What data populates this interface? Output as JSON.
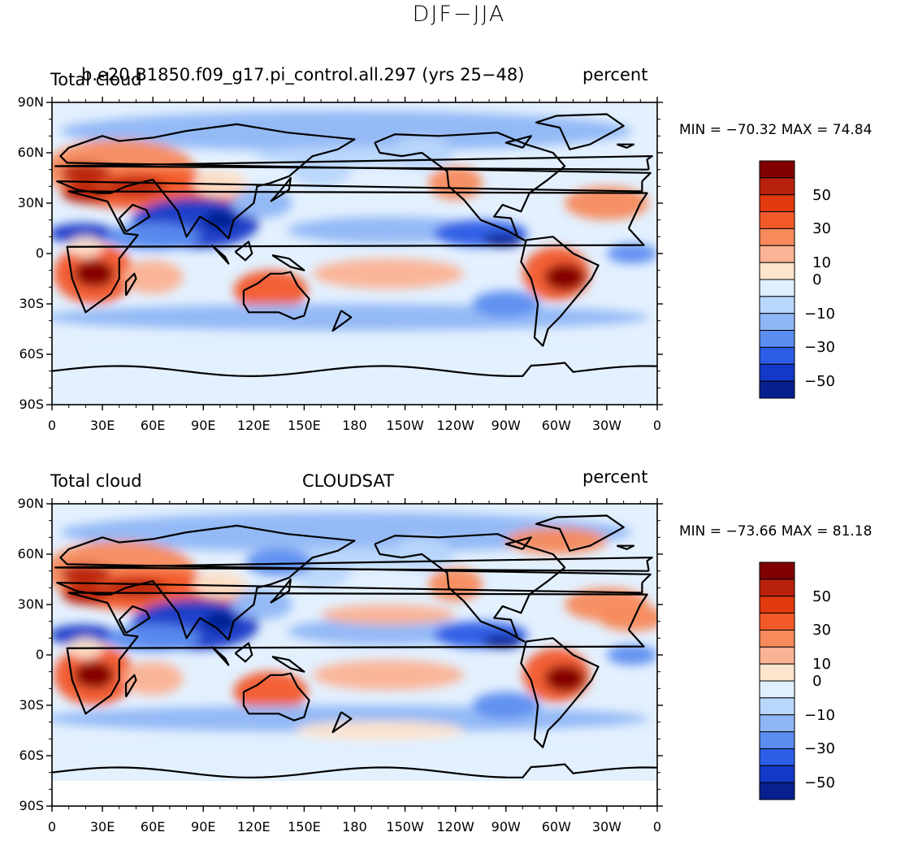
{
  "title": "DJF−JJA",
  "lat_labels": [
    "90N",
    "60N",
    "30N",
    "0",
    "30S",
    "60S",
    "90S"
  ],
  "lon_labels": [
    "0",
    "30E",
    "60E",
    "90E",
    "120E",
    "150E",
    "180",
    "150W",
    "120W",
    "90W",
    "60W",
    "30W",
    "0"
  ],
  "colorbar_colors": [
    "#800000",
    "#b8220c",
    "#e03a0e",
    "#f35a2a",
    "#f88a5c",
    "#fcb294",
    "#fde4cc",
    "#e0f0ff",
    "#b9d6fb",
    "#8fb6f6",
    "#5c8df0",
    "#2c5de6",
    "#1339c8",
    "#06208f"
  ],
  "colorbar_labels": [
    "50",
    "30",
    "10",
    "0",
    "−10",
    "−30",
    "−50"
  ],
  "land_color": "#000000",
  "panels": [
    {
      "left_title": "Total cloud",
      "center_title": "b.e20.B1850.f09_g17.pi_control.all.297 (yrs 25−48)",
      "right_title": "percent",
      "stats": "MIN = −70.32 MAX =  74.84",
      "min": -70.32,
      "max": 74.84
    },
    {
      "left_title": "Total cloud",
      "center_title": "CLOUDSAT",
      "right_title": "percent",
      "stats": "MIN = −73.66 MAX =  81.18",
      "min": -73.66,
      "max": 81.18
    }
  ]
}
